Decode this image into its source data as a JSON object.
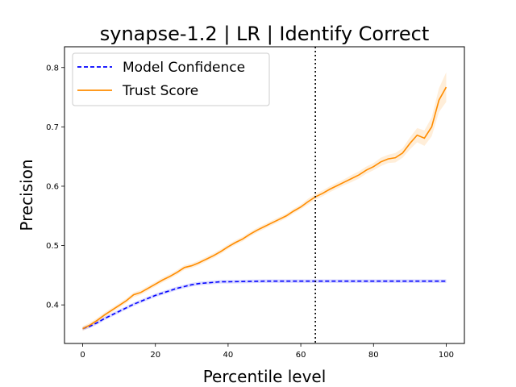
{
  "chart_data": {
    "type": "line",
    "title": "synapse-1.2 | LR | Identify Correct",
    "xlabel": "Percentile level",
    "ylabel": "Precision",
    "xlim": [
      -5,
      105
    ],
    "ylim": [
      0.335,
      0.835
    ],
    "xticks": [
      "0",
      "20",
      "40",
      "60",
      "80",
      "100"
    ],
    "xtick_values": [
      0,
      20,
      40,
      60,
      80,
      100
    ],
    "yticks": [
      "0.4",
      "0.5",
      "0.6",
      "0.7",
      "0.8"
    ],
    "ytick_values": [
      0.4,
      0.5,
      0.6,
      0.7,
      0.8
    ],
    "grid": false,
    "legend_position": "upper-left",
    "vline": {
      "x": 64,
      "style": "dotted",
      "color": "#000000"
    },
    "series": [
      {
        "name": "Model Confidence",
        "color": "#0000ff",
        "style": "dashed",
        "band": 0.003,
        "x": [
          0,
          2,
          4,
          6,
          8,
          10,
          12,
          14,
          16,
          18,
          20,
          22,
          24,
          26,
          28,
          30,
          32,
          34,
          36,
          38,
          40,
          45,
          50,
          55,
          60,
          65,
          70,
          75,
          80,
          85,
          90,
          95,
          100
        ],
        "y": [
          0.36,
          0.364,
          0.37,
          0.377,
          0.383,
          0.389,
          0.395,
          0.401,
          0.406,
          0.411,
          0.416,
          0.42,
          0.424,
          0.428,
          0.431,
          0.434,
          0.436,
          0.437,
          0.438,
          0.439,
          0.439,
          0.4395,
          0.44,
          0.44,
          0.44,
          0.44,
          0.44,
          0.44,
          0.44,
          0.44,
          0.44,
          0.44,
          0.44
        ]
      },
      {
        "name": "Trust Score",
        "color": "#ff8c00",
        "style": "solid",
        "x": [
          0,
          2,
          4,
          6,
          8,
          10,
          12,
          14,
          16,
          18,
          20,
          22,
          24,
          26,
          28,
          30,
          32,
          34,
          36,
          38,
          40,
          42,
          44,
          46,
          48,
          50,
          52,
          54,
          56,
          58,
          60,
          62,
          64,
          66,
          68,
          70,
          72,
          74,
          76,
          78,
          80,
          82,
          84,
          86,
          88,
          90,
          92,
          94,
          96,
          98,
          100
        ],
        "y": [
          0.36,
          0.366,
          0.374,
          0.383,
          0.391,
          0.399,
          0.407,
          0.417,
          0.421,
          0.428,
          0.435,
          0.442,
          0.448,
          0.455,
          0.463,
          0.466,
          0.471,
          0.477,
          0.483,
          0.49,
          0.498,
          0.505,
          0.511,
          0.519,
          0.526,
          0.532,
          0.538,
          0.544,
          0.55,
          0.558,
          0.565,
          0.574,
          0.582,
          0.588,
          0.595,
          0.601,
          0.607,
          0.613,
          0.619,
          0.627,
          0.633,
          0.641,
          0.646,
          0.648,
          0.656,
          0.672,
          0.686,
          0.681,
          0.7,
          0.745,
          0.767
        ],
        "band": [
          0.004,
          0.004,
          0.004,
          0.004,
          0.004,
          0.004,
          0.004,
          0.004,
          0.004,
          0.004,
          0.004,
          0.004,
          0.004,
          0.004,
          0.004,
          0.004,
          0.004,
          0.004,
          0.004,
          0.004,
          0.004,
          0.004,
          0.004,
          0.004,
          0.004,
          0.004,
          0.004,
          0.004,
          0.004,
          0.004,
          0.004,
          0.005,
          0.005,
          0.005,
          0.005,
          0.005,
          0.005,
          0.006,
          0.006,
          0.006,
          0.006,
          0.007,
          0.007,
          0.008,
          0.008,
          0.01,
          0.012,
          0.013,
          0.016,
          0.02,
          0.025
        ]
      }
    ]
  }
}
